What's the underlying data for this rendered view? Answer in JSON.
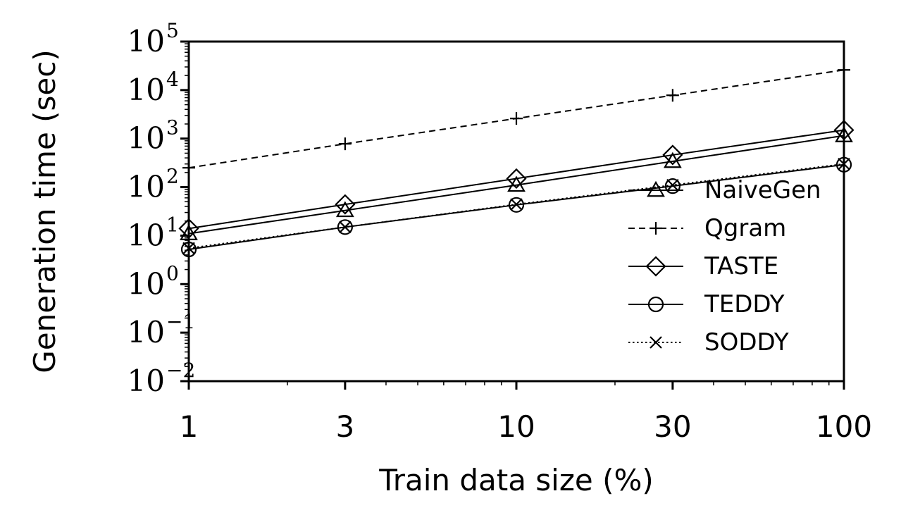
{
  "chart_data": {
    "type": "line",
    "title": "",
    "xlabel": "Train data size (%)",
    "ylabel": "Generation time (sec)",
    "x_scale": "log",
    "y_scale": "log",
    "x": [
      1,
      3,
      10,
      30,
      100
    ],
    "xticks": [
      {
        "value": 1,
        "label": "1"
      },
      {
        "value": 3,
        "label": "3"
      },
      {
        "value": 10,
        "label": "10"
      },
      {
        "value": 30,
        "label": "30"
      },
      {
        "value": 100,
        "label": "100"
      }
    ],
    "ylim": [
      0.01,
      100000
    ],
    "yticks": [
      {
        "value": 0.01,
        "base": "10",
        "exp": "−2"
      },
      {
        "value": 0.1,
        "base": "10",
        "exp": "−1"
      },
      {
        "value": 1,
        "base": "10",
        "exp": "0"
      },
      {
        "value": 10,
        "base": "10",
        "exp": "1"
      },
      {
        "value": 100,
        "base": "10",
        "exp": "2"
      },
      {
        "value": 1000,
        "base": "10",
        "exp": "3"
      },
      {
        "value": 10000,
        "base": "10",
        "exp": "4"
      },
      {
        "value": 100000,
        "base": "10",
        "exp": "5"
      }
    ],
    "grid": false,
    "legend_position": "lower-right",
    "series": [
      {
        "name": "NaiveGen",
        "values": [
          11,
          33,
          110,
          340,
          1150
        ],
        "marker": "triangle",
        "line": "solid"
      },
      {
        "name": "Qgram",
        "values": [
          250,
          780,
          2600,
          7800,
          26000
        ],
        "marker": "plus",
        "line": "dashed"
      },
      {
        "name": "TASTE",
        "values": [
          14,
          44,
          150,
          460,
          1500
        ],
        "marker": "diamond",
        "line": "solid"
      },
      {
        "name": "TEDDY",
        "values": [
          5.2,
          15,
          43,
          105,
          290
        ],
        "marker": "circle",
        "line": "solid"
      },
      {
        "name": "SODDY",
        "values": [
          5.5,
          15,
          44,
          110,
          300
        ],
        "marker": "x",
        "line": "dotted"
      }
    ]
  }
}
